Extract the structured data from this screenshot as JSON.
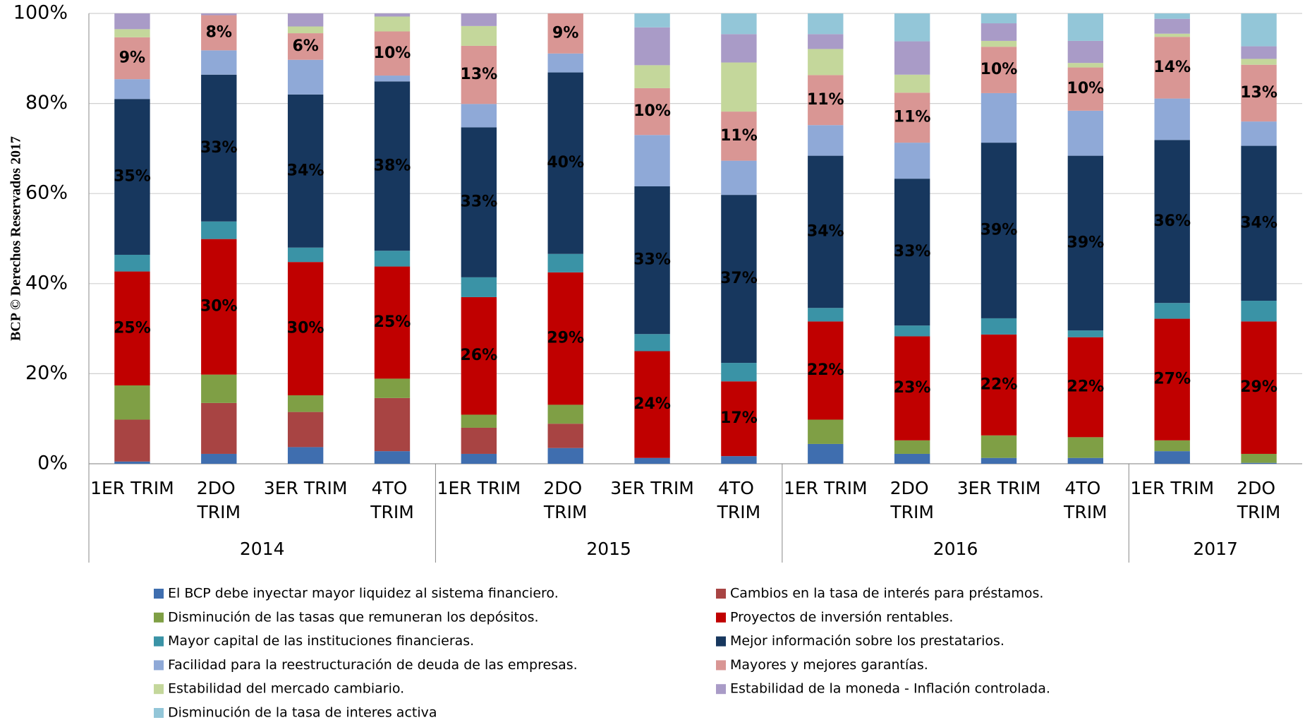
{
  "chart_data": {
    "type": "stacked_bar",
    "y_label": "BCP © Derechos Reservados 2017",
    "categories": [
      "1ER TRIM",
      "2DO TRIM",
      "3ER TRIM",
      "4TO TRIM",
      "1ER TRIM",
      "2DO TRIM",
      "3ER TRIM",
      "4TO TRIM",
      "1ER TRIM",
      "2DO TRIM",
      "3ER TRIM",
      "4TO TRIM",
      "1ER TRIM",
      "2DO TRIM"
    ],
    "groups": [
      {
        "label": "2014",
        "size": 4
      },
      {
        "label": "2015",
        "size": 4
      },
      {
        "label": "2016",
        "size": 4
      },
      {
        "label": "2017",
        "size": 2
      }
    ],
    "ylim": [
      0,
      100
    ],
    "yticks": [
      {
        "value": 0,
        "label": "0%"
      },
      {
        "value": 20,
        "label": "20%"
      },
      {
        "value": 40,
        "label": "40%"
      },
      {
        "value": 60,
        "label": "60%"
      },
      {
        "value": 80,
        "label": "80%"
      },
      {
        "value": 100,
        "label": "100%"
      }
    ],
    "grid": true,
    "series": [
      {
        "name": "El BCP debe inyectar mayor liquidez al sistema financiero.",
        "color": "#3f6eaf",
        "values": [
          0.5,
          2.2,
          3.7,
          2.8,
          2.2,
          3.5,
          1.3,
          1.7,
          4.4,
          2.2,
          1.3,
          1.3,
          2.8,
          0.2
        ]
      },
      {
        "name": "Cambios en la tasa de interés para préstamos.",
        "color": "#a84443",
        "values": [
          9.3,
          11.3,
          7.8,
          11.8,
          5.8,
          5.4,
          0,
          0,
          0,
          0,
          0,
          0,
          0,
          0
        ]
      },
      {
        "name": "Disminución de las tasas que remuneran los depósitos.",
        "color": "#7f9f45",
        "values": [
          7.6,
          6.3,
          3.7,
          4.3,
          2.9,
          4.2,
          0,
          0,
          5.4,
          3.0,
          5.0,
          4.6,
          2.4,
          2.0
        ]
      },
      {
        "name": "Proyectos de inversión rentables.",
        "color": "#c00000",
        "label_color": "#ffffff",
        "values": [
          25.3,
          30.1,
          29.6,
          24.9,
          26.1,
          29.4,
          23.7,
          16.6,
          21.8,
          23.1,
          22.4,
          22.2,
          27.0,
          29.4
        ],
        "value_labels": [
          "25%",
          "30%",
          "30%",
          "25%",
          "26%",
          "29%",
          "24%",
          "17%",
          "22%",
          "23%",
          "22%",
          "22%",
          "27%",
          "29%"
        ]
      },
      {
        "name": "Mayor capital de las instituciones financieras.",
        "color": "#3a93a6",
        "values": [
          3.7,
          3.9,
          3.2,
          3.5,
          4.4,
          4.1,
          3.8,
          4.1,
          3.0,
          2.4,
          3.6,
          1.5,
          3.5,
          4.6
        ]
      },
      {
        "name": "Mejor información sobre los prestatarios.",
        "color": "#17375e",
        "label_color": "#ffffff",
        "values": [
          34.6,
          32.6,
          34.0,
          37.6,
          33.3,
          40.3,
          32.8,
          37.3,
          33.8,
          32.6,
          39.0,
          38.8,
          36.2,
          34.4
        ],
        "value_labels": [
          "35%",
          "33%",
          "34%",
          "38%",
          "33%",
          "40%",
          "33%",
          "37%",
          "34%",
          "33%",
          "39%",
          "39%",
          "36%",
          "34%"
        ]
      },
      {
        "name": "Facilidad para la reestructuración de deuda de las empresas.",
        "color": "#8fa9d7",
        "values": [
          4.4,
          5.4,
          7.7,
          1.3,
          5.2,
          4.2,
          11.4,
          7.6,
          6.8,
          8.0,
          11.0,
          10.0,
          9.2,
          5.4
        ]
      },
      {
        "name": "Mayores y mejores garantías.",
        "color": "#d99694",
        "label_color": "#000000",
        "values": [
          9.3,
          7.8,
          5.9,
          9.8,
          12.9,
          8.9,
          10.4,
          10.9,
          11.1,
          11.1,
          10.3,
          9.6,
          13.7,
          12.6
        ],
        "value_labels": [
          "9%",
          "8%",
          "6%",
          "10%",
          "13%",
          "9%",
          "10%",
          "11%",
          "11%",
          "11%",
          "10%",
          "10%",
          "14%",
          "13%"
        ]
      },
      {
        "name": "Estabilidad del mercado cambiario.",
        "color": "#c4d79b",
        "values": [
          1.8,
          0,
          1.5,
          3.3,
          4.4,
          0,
          5.1,
          10.9,
          5.8,
          4.0,
          1.3,
          1.0,
          0.7,
          1.3
        ]
      },
      {
        "name": "Estabilidad de la moneda - Inflación controlada.",
        "color": "#a99bc7",
        "values": [
          3.5,
          0.4,
          2.9,
          0.7,
          2.8,
          0,
          8.4,
          6.3,
          3.3,
          7.4,
          3.9,
          4.9,
          3.3,
          2.8
        ]
      },
      {
        "name": "Disminución de la tasa de interes activa",
        "color": "#93c6d8",
        "values": [
          0,
          0,
          0,
          0,
          0,
          0,
          3.1,
          4.6,
          4.6,
          6.2,
          2.2,
          6.1,
          1.2,
          7.3
        ]
      }
    ]
  }
}
